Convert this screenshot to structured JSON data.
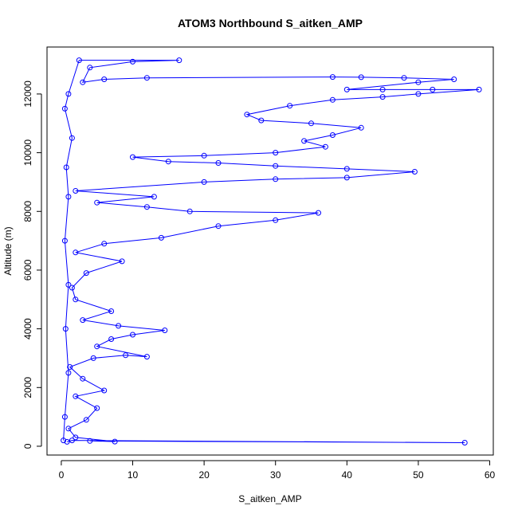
{
  "chart_data": {
    "type": "line",
    "title": "ATOM3 Northbound S_aitken_AMP",
    "xlabel": "S_aitken_AMP",
    "ylabel": "Altitude (m)",
    "xlim": [
      -2,
      60.5
    ],
    "ylim": [
      -300,
      13600
    ],
    "xticks": [
      0,
      10,
      20,
      30,
      40,
      50,
      60
    ],
    "yticks": [
      0,
      2000,
      4000,
      6000,
      8000,
      10000,
      12000
    ],
    "grid": false,
    "legend": "none",
    "marker": "open-circle",
    "series": [
      {
        "color": "#0000ff",
        "points": [
          [
            0.8,
            150
          ],
          [
            1.5,
            200
          ],
          [
            56.5,
            120
          ],
          [
            4.0,
            180
          ],
          [
            7.5,
            160
          ],
          [
            2.0,
            300
          ],
          [
            1.0,
            600
          ],
          [
            3.5,
            900
          ],
          [
            5.0,
            1300
          ],
          [
            2.0,
            1700
          ],
          [
            6.0,
            1900
          ],
          [
            3.0,
            2300
          ],
          [
            1.2,
            2700
          ],
          [
            4.5,
            3000
          ],
          [
            9.0,
            3100
          ],
          [
            12.0,
            3050
          ],
          [
            5.0,
            3400
          ],
          [
            7.0,
            3650
          ],
          [
            10.0,
            3800
          ],
          [
            14.5,
            3950
          ],
          [
            8.0,
            4100
          ],
          [
            3.0,
            4300
          ],
          [
            7.0,
            4600
          ],
          [
            2.0,
            5000
          ],
          [
            1.5,
            5400
          ],
          [
            3.5,
            5900
          ],
          [
            8.5,
            6300
          ],
          [
            2.0,
            6600
          ],
          [
            6.0,
            6900
          ],
          [
            14.0,
            7100
          ],
          [
            22.0,
            7500
          ],
          [
            30.0,
            7700
          ],
          [
            36.0,
            7950
          ],
          [
            18.0,
            8000
          ],
          [
            12.0,
            8150
          ],
          [
            5.0,
            8300
          ],
          [
            13.0,
            8500
          ],
          [
            2.0,
            8700
          ],
          [
            20.0,
            9000
          ],
          [
            30.0,
            9100
          ],
          [
            40.0,
            9150
          ],
          [
            49.5,
            9350
          ],
          [
            40.0,
            9450
          ],
          [
            30.0,
            9550
          ],
          [
            22.0,
            9650
          ],
          [
            15.0,
            9700
          ],
          [
            10.0,
            9850
          ],
          [
            20.0,
            9900
          ],
          [
            30.0,
            10000
          ],
          [
            37.0,
            10200
          ],
          [
            34.0,
            10400
          ],
          [
            38.0,
            10600
          ],
          [
            42.0,
            10850
          ],
          [
            35.0,
            11000
          ],
          [
            28.0,
            11100
          ],
          [
            26.0,
            11300
          ],
          [
            32.0,
            11600
          ],
          [
            38.0,
            11800
          ],
          [
            45.0,
            11900
          ],
          [
            50.0,
            12000
          ],
          [
            58.5,
            12150
          ],
          [
            52.0,
            12150
          ],
          [
            45.0,
            12150
          ],
          [
            40.0,
            12150
          ],
          [
            50.0,
            12400
          ],
          [
            55.0,
            12500
          ],
          [
            48.0,
            12550
          ],
          [
            42.0,
            12570
          ],
          [
            38.0,
            12580
          ],
          [
            12.0,
            12550
          ],
          [
            6.0,
            12500
          ],
          [
            3.0,
            12400
          ],
          [
            4.0,
            12900
          ],
          [
            10.0,
            13100
          ],
          [
            16.5,
            13150
          ],
          [
            2.5,
            13150
          ],
          [
            1.0,
            12000
          ],
          [
            0.5,
            11500
          ],
          [
            1.5,
            10500
          ],
          [
            0.7,
            9500
          ],
          [
            1.0,
            8500
          ],
          [
            0.5,
            7000
          ],
          [
            1.0,
            5500
          ],
          [
            0.6,
            4000
          ],
          [
            1.0,
            2500
          ],
          [
            0.5,
            1000
          ],
          [
            0.3,
            200
          ]
        ]
      }
    ]
  }
}
